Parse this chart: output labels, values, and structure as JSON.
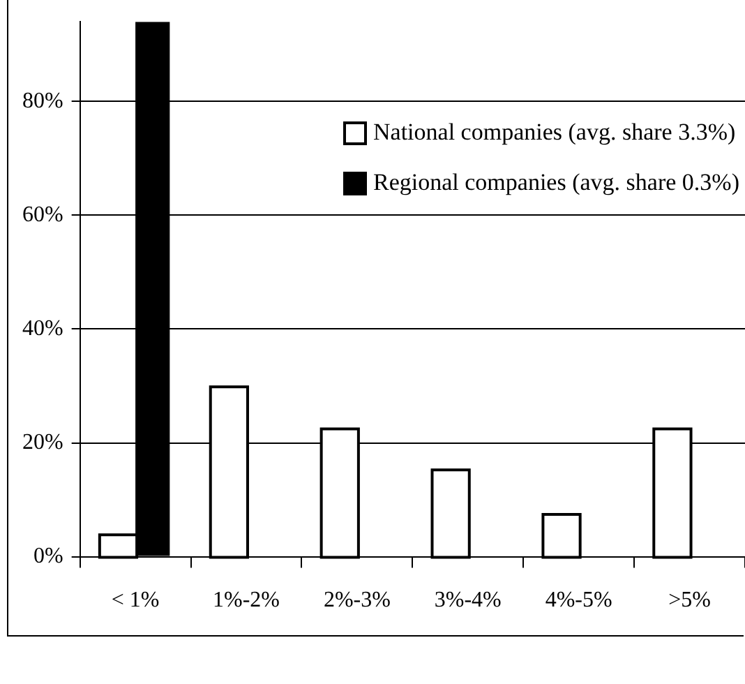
{
  "chart_data": {
    "type": "bar",
    "categories": [
      "< 1%",
      "1%-2%",
      "2%-3%",
      "3%-4%",
      "4%-5%",
      ">5%"
    ],
    "series": [
      {
        "name": "National companies (avg. share 3.3%)",
        "color": "#ffffff",
        "values": [
          3.6,
          29.6,
          22.2,
          15,
          7.2,
          22.2
        ]
      },
      {
        "name": "Regional companies (avg. share 0.3%)",
        "color": "#000000",
        "values": [
          94,
          0,
          0,
          0,
          0,
          0
        ]
      }
    ],
    "ylim": [
      0,
      94
    ],
    "yticks": [
      {
        "value": 0,
        "label": "0%"
      },
      {
        "value": 20,
        "label": "20%"
      },
      {
        "value": 40,
        "label": "40%"
      },
      {
        "value": 60,
        "label": "60%"
      },
      {
        "value": 80,
        "label": "80%"
      }
    ],
    "grid": "y",
    "legend": "top right"
  }
}
